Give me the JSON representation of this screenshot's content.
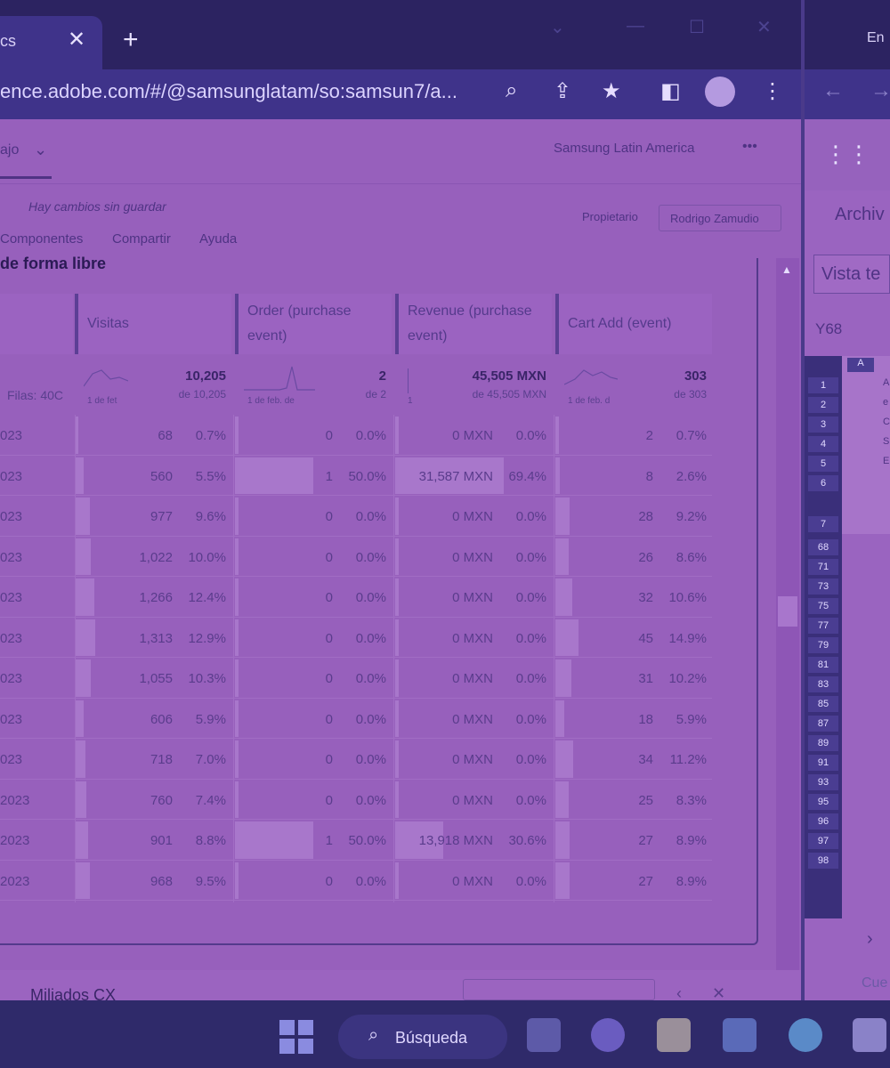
{
  "browser": {
    "tab_label": "cs",
    "tab_close": "✕",
    "new_tab": "+",
    "url": "ence.adobe.com/#/@samsunglatam/so:samsun7/a..."
  },
  "right_window": {
    "title_fragment": "En",
    "ribbon_label": "Archiv",
    "view_field": "Vista te",
    "cell_ref": "Y68",
    "bottom_label": "Cue",
    "column_header": "A",
    "row_numbers": [
      "1",
      "2",
      "3",
      "4",
      "5",
      "6",
      "7",
      "68",
      "71",
      "73",
      "75",
      "77",
      "79",
      "81",
      "83",
      "85",
      "87",
      "89",
      "91",
      "93",
      "95",
      "96",
      "97",
      "98"
    ],
    "cell_letters": [
      "A",
      "e",
      "C",
      "S",
      "E"
    ]
  },
  "app": {
    "workspace": "ajo",
    "org": "Samsung Latin America",
    "more": "•••",
    "unsaved": "Hay cambios sin guardar",
    "menu": [
      "Componentes",
      "Compartir",
      "Ayuda"
    ],
    "owner_label": "Propietario",
    "owner_name": "Rodrigo Zamudio",
    "panel_title": "de forma libre",
    "bottom_panel_title": "Miliados CX"
  },
  "table": {
    "rows_label": "Filas: 40C",
    "columns": [
      {
        "name": "Visitas",
        "total": "10,205",
        "of": "de 10,205",
        "spark_label": "1 de fet"
      },
      {
        "name": "Order (purchase event)",
        "total": "2",
        "of": "de 2",
        "spark_label": "1 de feb. de"
      },
      {
        "name": "Revenue (purchase event)",
        "total": "45,505 MXN",
        "of": "de 45,505 MXN",
        "spark_label": "1"
      },
      {
        "name": "Cart Add (event)",
        "total": "303",
        "of": "de 303",
        "spark_label": "1 de feb. d"
      }
    ],
    "rows": [
      {
        "date": "023",
        "visitas": "68",
        "visitas_pct": "0.7%",
        "orders": "0",
        "orders_pct": "0.0%",
        "revenue": "0 MXN",
        "revenue_pct": "0.0%",
        "cart": "2",
        "cart_pct": "0.7%"
      },
      {
        "date": "023",
        "visitas": "560",
        "visitas_pct": "5.5%",
        "orders": "1",
        "orders_pct": "50.0%",
        "revenue": "31,587 MXN",
        "revenue_pct": "69.4%",
        "cart": "8",
        "cart_pct": "2.6%"
      },
      {
        "date": "023",
        "visitas": "977",
        "visitas_pct": "9.6%",
        "orders": "0",
        "orders_pct": "0.0%",
        "revenue": "0 MXN",
        "revenue_pct": "0.0%",
        "cart": "28",
        "cart_pct": "9.2%"
      },
      {
        "date": "023",
        "visitas": "1,022",
        "visitas_pct": "10.0%",
        "orders": "0",
        "orders_pct": "0.0%",
        "revenue": "0 MXN",
        "revenue_pct": "0.0%",
        "cart": "26",
        "cart_pct": "8.6%"
      },
      {
        "date": "023",
        "visitas": "1,266",
        "visitas_pct": "12.4%",
        "orders": "0",
        "orders_pct": "0.0%",
        "revenue": "0 MXN",
        "revenue_pct": "0.0%",
        "cart": "32",
        "cart_pct": "10.6%"
      },
      {
        "date": "023",
        "visitas": "1,313",
        "visitas_pct": "12.9%",
        "orders": "0",
        "orders_pct": "0.0%",
        "revenue": "0 MXN",
        "revenue_pct": "0.0%",
        "cart": "45",
        "cart_pct": "14.9%"
      },
      {
        "date": "023",
        "visitas": "1,055",
        "visitas_pct": "10.3%",
        "orders": "0",
        "orders_pct": "0.0%",
        "revenue": "0 MXN",
        "revenue_pct": "0.0%",
        "cart": "31",
        "cart_pct": "10.2%"
      },
      {
        "date": "023",
        "visitas": "606",
        "visitas_pct": "5.9%",
        "orders": "0",
        "orders_pct": "0.0%",
        "revenue": "0 MXN",
        "revenue_pct": "0.0%",
        "cart": "18",
        "cart_pct": "5.9%"
      },
      {
        "date": "023",
        "visitas": "718",
        "visitas_pct": "7.0%",
        "orders": "0",
        "orders_pct": "0.0%",
        "revenue": "0 MXN",
        "revenue_pct": "0.0%",
        "cart": "34",
        "cart_pct": "11.2%"
      },
      {
        "date": "2023",
        "visitas": "760",
        "visitas_pct": "7.4%",
        "orders": "0",
        "orders_pct": "0.0%",
        "revenue": "0 MXN",
        "revenue_pct": "0.0%",
        "cart": "25",
        "cart_pct": "8.3%"
      },
      {
        "date": "2023",
        "visitas": "901",
        "visitas_pct": "8.8%",
        "orders": "1",
        "orders_pct": "50.0%",
        "revenue": "13,918 MXN",
        "revenue_pct": "30.6%",
        "cart": "27",
        "cart_pct": "8.9%"
      },
      {
        "date": "2023",
        "visitas": "968",
        "visitas_pct": "9.5%",
        "orders": "0",
        "orders_pct": "0.0%",
        "revenue": "0 MXN",
        "revenue_pct": "0.0%",
        "cart": "27",
        "cart_pct": "8.9%"
      }
    ]
  },
  "taskbar": {
    "search_label": "Búsqueda"
  },
  "icons": {
    "tab_close": "close-icon",
    "zoom": "search-icon",
    "share": "share-icon",
    "bookmark": "star-icon",
    "sidebar": "sidebar-icon",
    "profile": "avatar",
    "menu": "kebab-icon",
    "windows": "windows-logo-icon",
    "edge": "edge-icon"
  },
  "colors": {
    "tint": "#9760bc",
    "chrome": "#2c2361",
    "taskbar": "#2f2a6a"
  }
}
